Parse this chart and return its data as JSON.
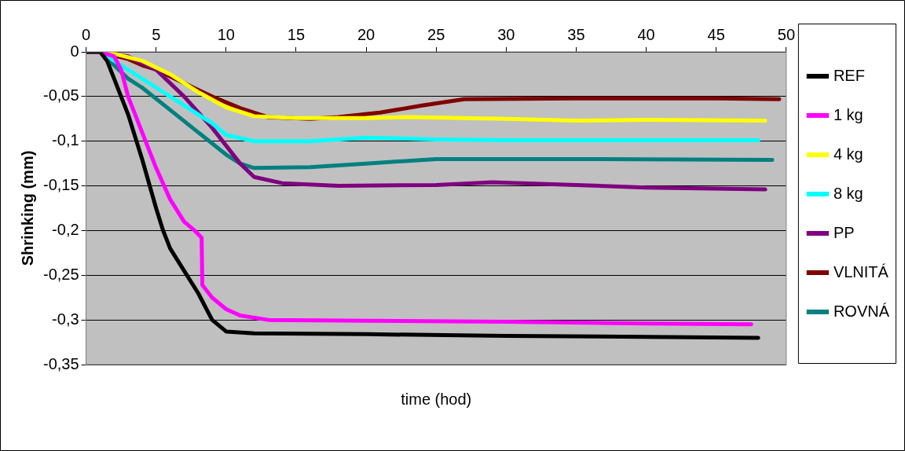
{
  "chart_data": {
    "type": "line",
    "xlabel": "time (hod)",
    "ylabel": "Shrinking (mm)",
    "xlim": [
      0,
      50
    ],
    "xticks": [
      0,
      5,
      10,
      15,
      20,
      25,
      30,
      35,
      40,
      45,
      50
    ],
    "ylim": [
      -0.35,
      0
    ],
    "yticks": [
      {
        "value": -0.35,
        "label": "-0,35"
      },
      {
        "value": -0.3,
        "label": "-0,3"
      },
      {
        "value": -0.25,
        "label": "-0,25"
      },
      {
        "value": -0.2,
        "label": "-0,2"
      },
      {
        "value": -0.15,
        "label": "-0,15"
      },
      {
        "value": -0.1,
        "label": "-0,1"
      },
      {
        "value": -0.05,
        "label": "-0,05"
      },
      {
        "value": 0,
        "label": "0"
      }
    ],
    "grid": "y",
    "legend": "right",
    "marker": "none",
    "line_style": "solid",
    "series": [
      {
        "name": "REF",
        "color": "#000000",
        "x": [
          0,
          1,
          1.5,
          3,
          4,
          5,
          5.5,
          6,
          7,
          8,
          9,
          10,
          12,
          20,
          30,
          40,
          48
        ],
        "values": [
          0,
          0,
          -0.01,
          -0.07,
          -0.12,
          -0.175,
          -0.2,
          -0.22,
          -0.245,
          -0.27,
          -0.3,
          -0.313,
          -0.315,
          -0.316,
          -0.318,
          -0.319,
          -0.32
        ]
      },
      {
        "name": "1 kg",
        "color": "#ff00ff",
        "x": [
          0,
          1,
          2,
          2.5,
          3,
          4,
          5,
          6,
          7,
          7.75,
          8.25,
          8.3,
          9,
          10,
          11,
          13,
          20,
          30,
          40,
          47.5
        ],
        "values": [
          0,
          0,
          -0.005,
          -0.02,
          -0.05,
          -0.09,
          -0.13,
          -0.165,
          -0.19,
          -0.2,
          -0.208,
          -0.261,
          -0.275,
          -0.288,
          -0.295,
          -0.3,
          -0.301,
          -0.302,
          -0.304,
          -0.305
        ]
      },
      {
        "name": "4 kg",
        "color": "#ffff00",
        "x": [
          0,
          1,
          2,
          4,
          6,
          8,
          10,
          12,
          15,
          20,
          23,
          30,
          35,
          40,
          48.5
        ],
        "values": [
          0,
          0,
          -0.002,
          -0.01,
          -0.025,
          -0.045,
          -0.062,
          -0.072,
          -0.074,
          -0.074,
          -0.073,
          -0.075,
          -0.077,
          -0.076,
          -0.077
        ]
      },
      {
        "name": "8 kg",
        "color": "#00ffff",
        "x": [
          0,
          1,
          3,
          5,
          7,
          9,
          10,
          12,
          16,
          20,
          25,
          30,
          40,
          48
        ],
        "values": [
          0,
          0,
          -0.02,
          -0.04,
          -0.06,
          -0.08,
          -0.093,
          -0.1,
          -0.1,
          -0.096,
          -0.098,
          -0.099,
          -0.099,
          -0.099
        ]
      },
      {
        "name": "PP",
        "color": "#800080",
        "x": [
          0,
          1,
          3,
          5,
          7,
          9,
          10,
          11,
          12,
          14,
          18,
          25,
          29,
          35,
          40,
          48.5
        ],
        "values": [
          0,
          0,
          -0.005,
          -0.02,
          -0.05,
          -0.085,
          -0.105,
          -0.125,
          -0.14,
          -0.147,
          -0.15,
          -0.149,
          -0.146,
          -0.149,
          -0.152,
          -0.154
        ]
      },
      {
        "name": "VLNITÁ",
        "color": "#800000",
        "x": [
          0,
          1,
          3,
          4,
          5,
          7,
          9,
          11,
          13,
          16,
          18,
          21,
          24,
          27,
          35,
          45,
          49.5
        ],
        "values": [
          0,
          0,
          -0.008,
          -0.015,
          -0.02,
          -0.035,
          -0.05,
          -0.063,
          -0.073,
          -0.075,
          -0.073,
          -0.068,
          -0.06,
          -0.053,
          -0.052,
          -0.052,
          -0.053
        ]
      },
      {
        "name": "ROVNÁ",
        "color": "#008080",
        "x": [
          0,
          1,
          2,
          3,
          4,
          6,
          8,
          10,
          11,
          12,
          16,
          20,
          25,
          35,
          49
        ],
        "values": [
          0,
          0,
          -0.015,
          -0.03,
          -0.04,
          -0.065,
          -0.09,
          -0.115,
          -0.125,
          -0.13,
          -0.129,
          -0.125,
          -0.12,
          -0.12,
          -0.121
        ]
      }
    ]
  }
}
